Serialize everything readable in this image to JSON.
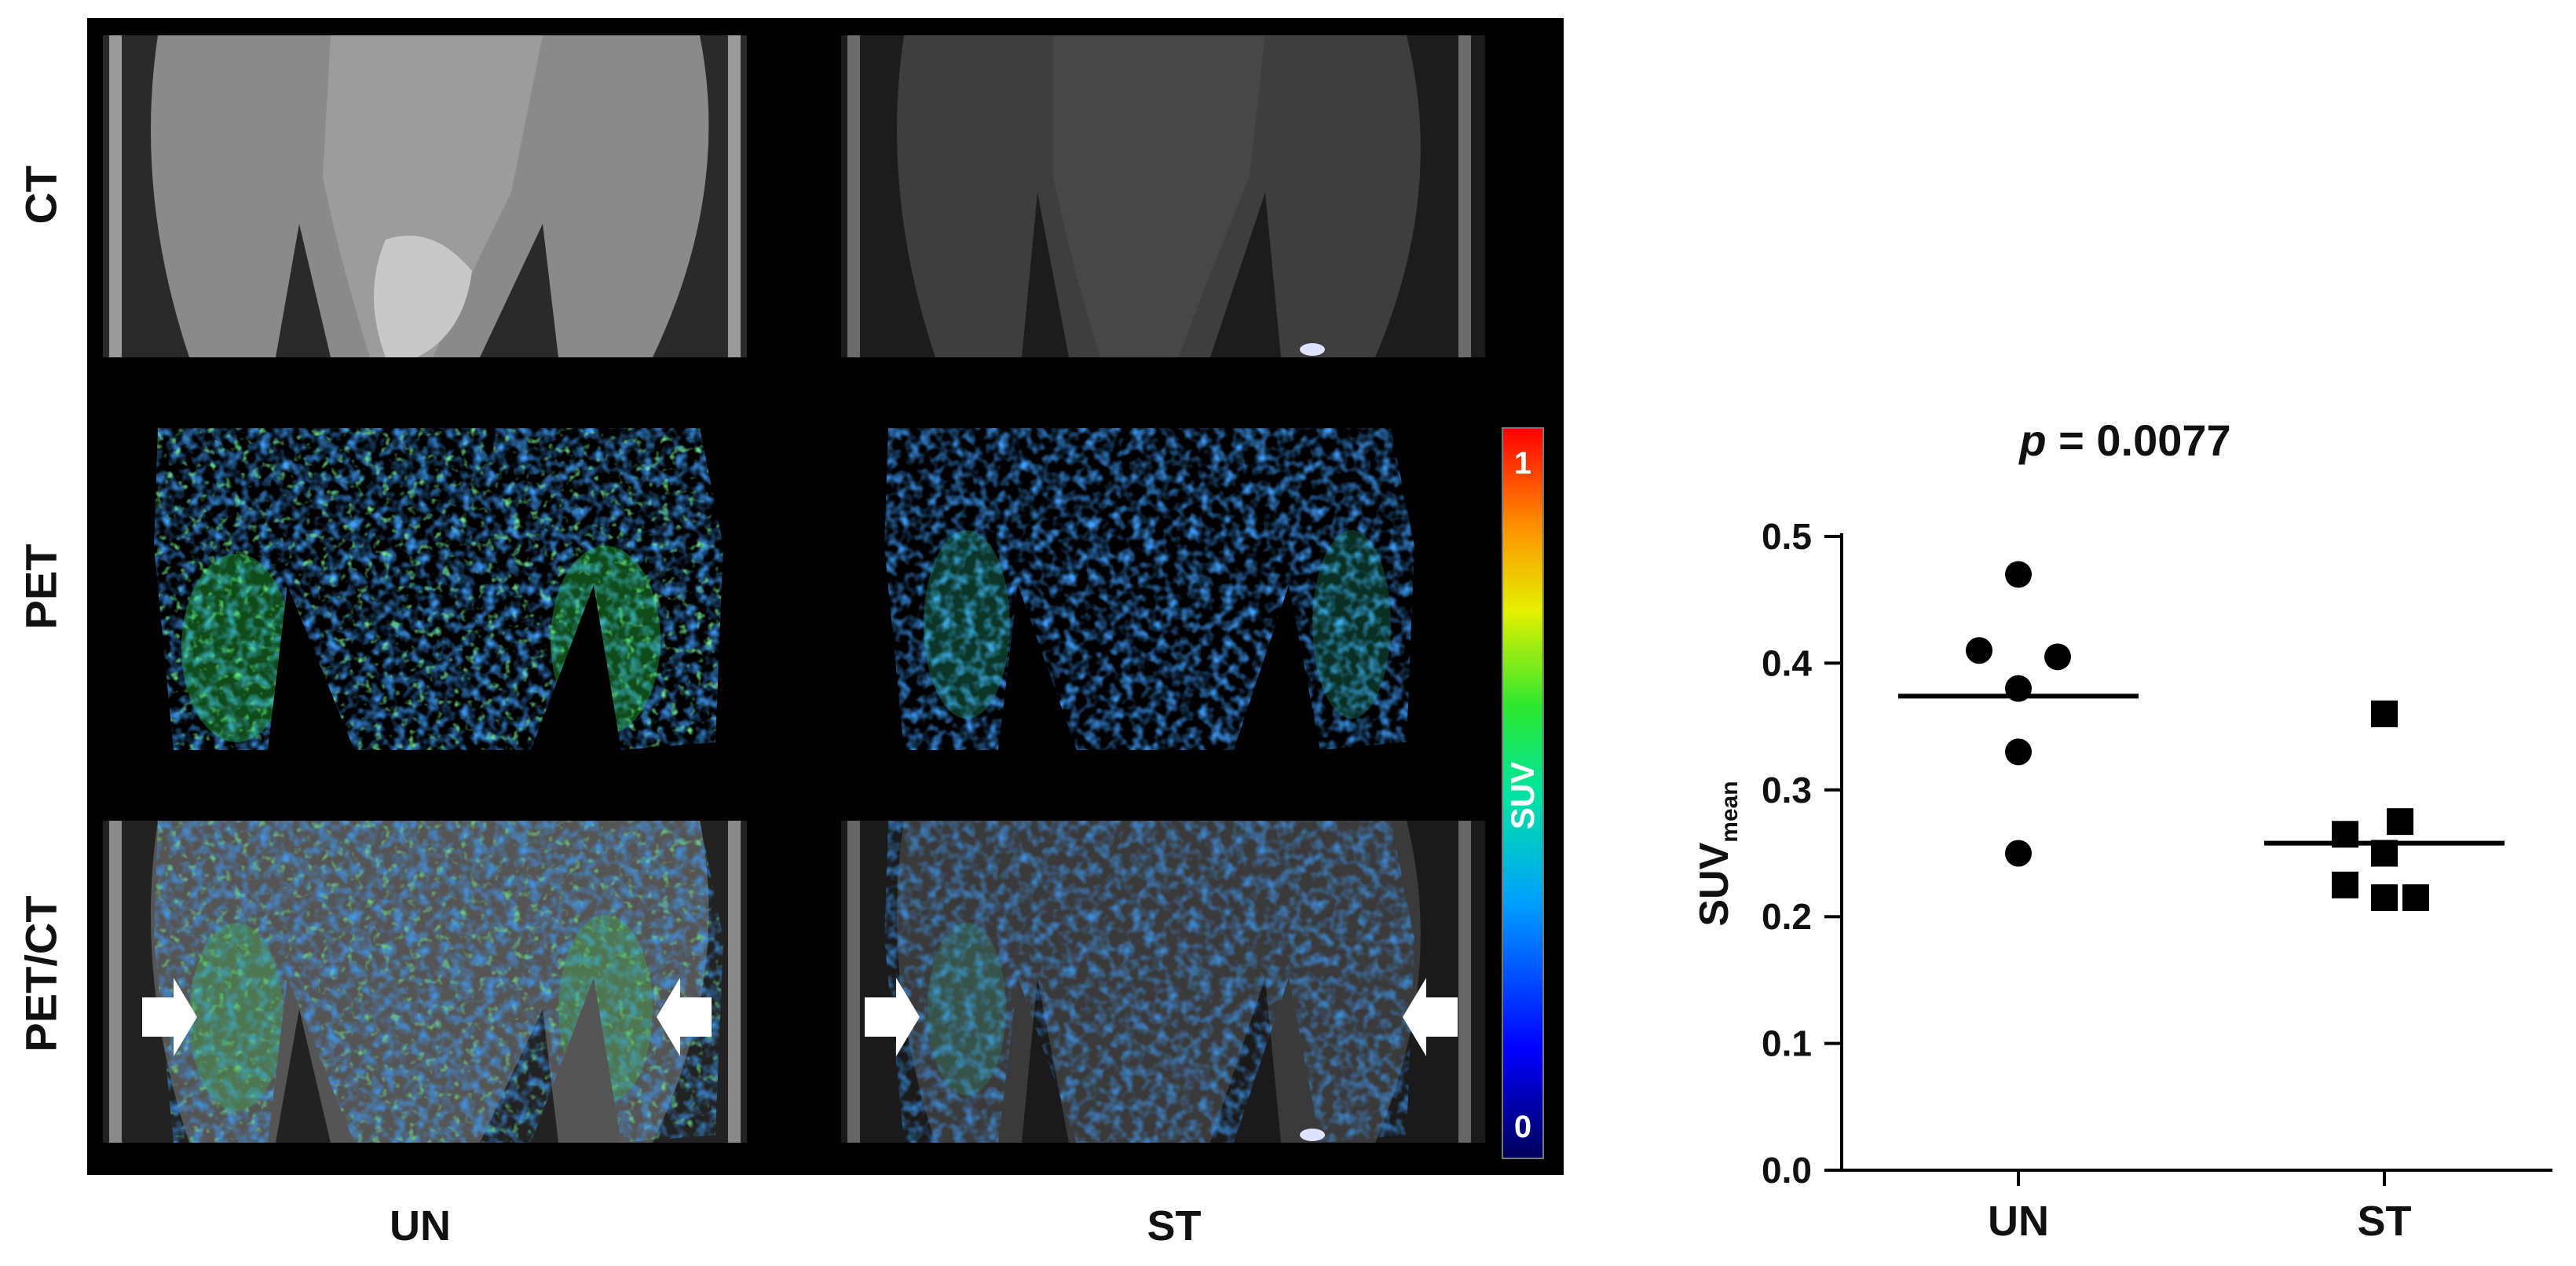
{
  "figure": {
    "row_labels": [
      "CT",
      "PET",
      "PET/CT"
    ],
    "column_labels": [
      "UN",
      "ST"
    ],
    "colorbar": {
      "label": "SUV",
      "max_label": "1",
      "min_label": "0"
    }
  },
  "chart_data": {
    "type": "scatter",
    "title_prefix": "p",
    "title_value": "= 0.0077",
    "ylabel_main": "SUV",
    "ylabel_sub": "mean",
    "categories": [
      "UN",
      "ST"
    ],
    "ylim": [
      0.0,
      0.5
    ],
    "yticks": [
      "0.0",
      "0.1",
      "0.2",
      "0.3",
      "0.4",
      "0.5"
    ],
    "series": [
      {
        "category": "UN",
        "marker": "circle",
        "values": [
          0.47,
          0.41,
          0.405,
          0.38,
          0.33,
          0.25
        ],
        "mean": 0.374
      },
      {
        "category": "ST",
        "marker": "square",
        "values": [
          0.36,
          0.275,
          0.265,
          0.25,
          0.225,
          0.215,
          0.215
        ],
        "mean": 0.258
      }
    ],
    "marker_color": "#000000",
    "grid": false
  }
}
